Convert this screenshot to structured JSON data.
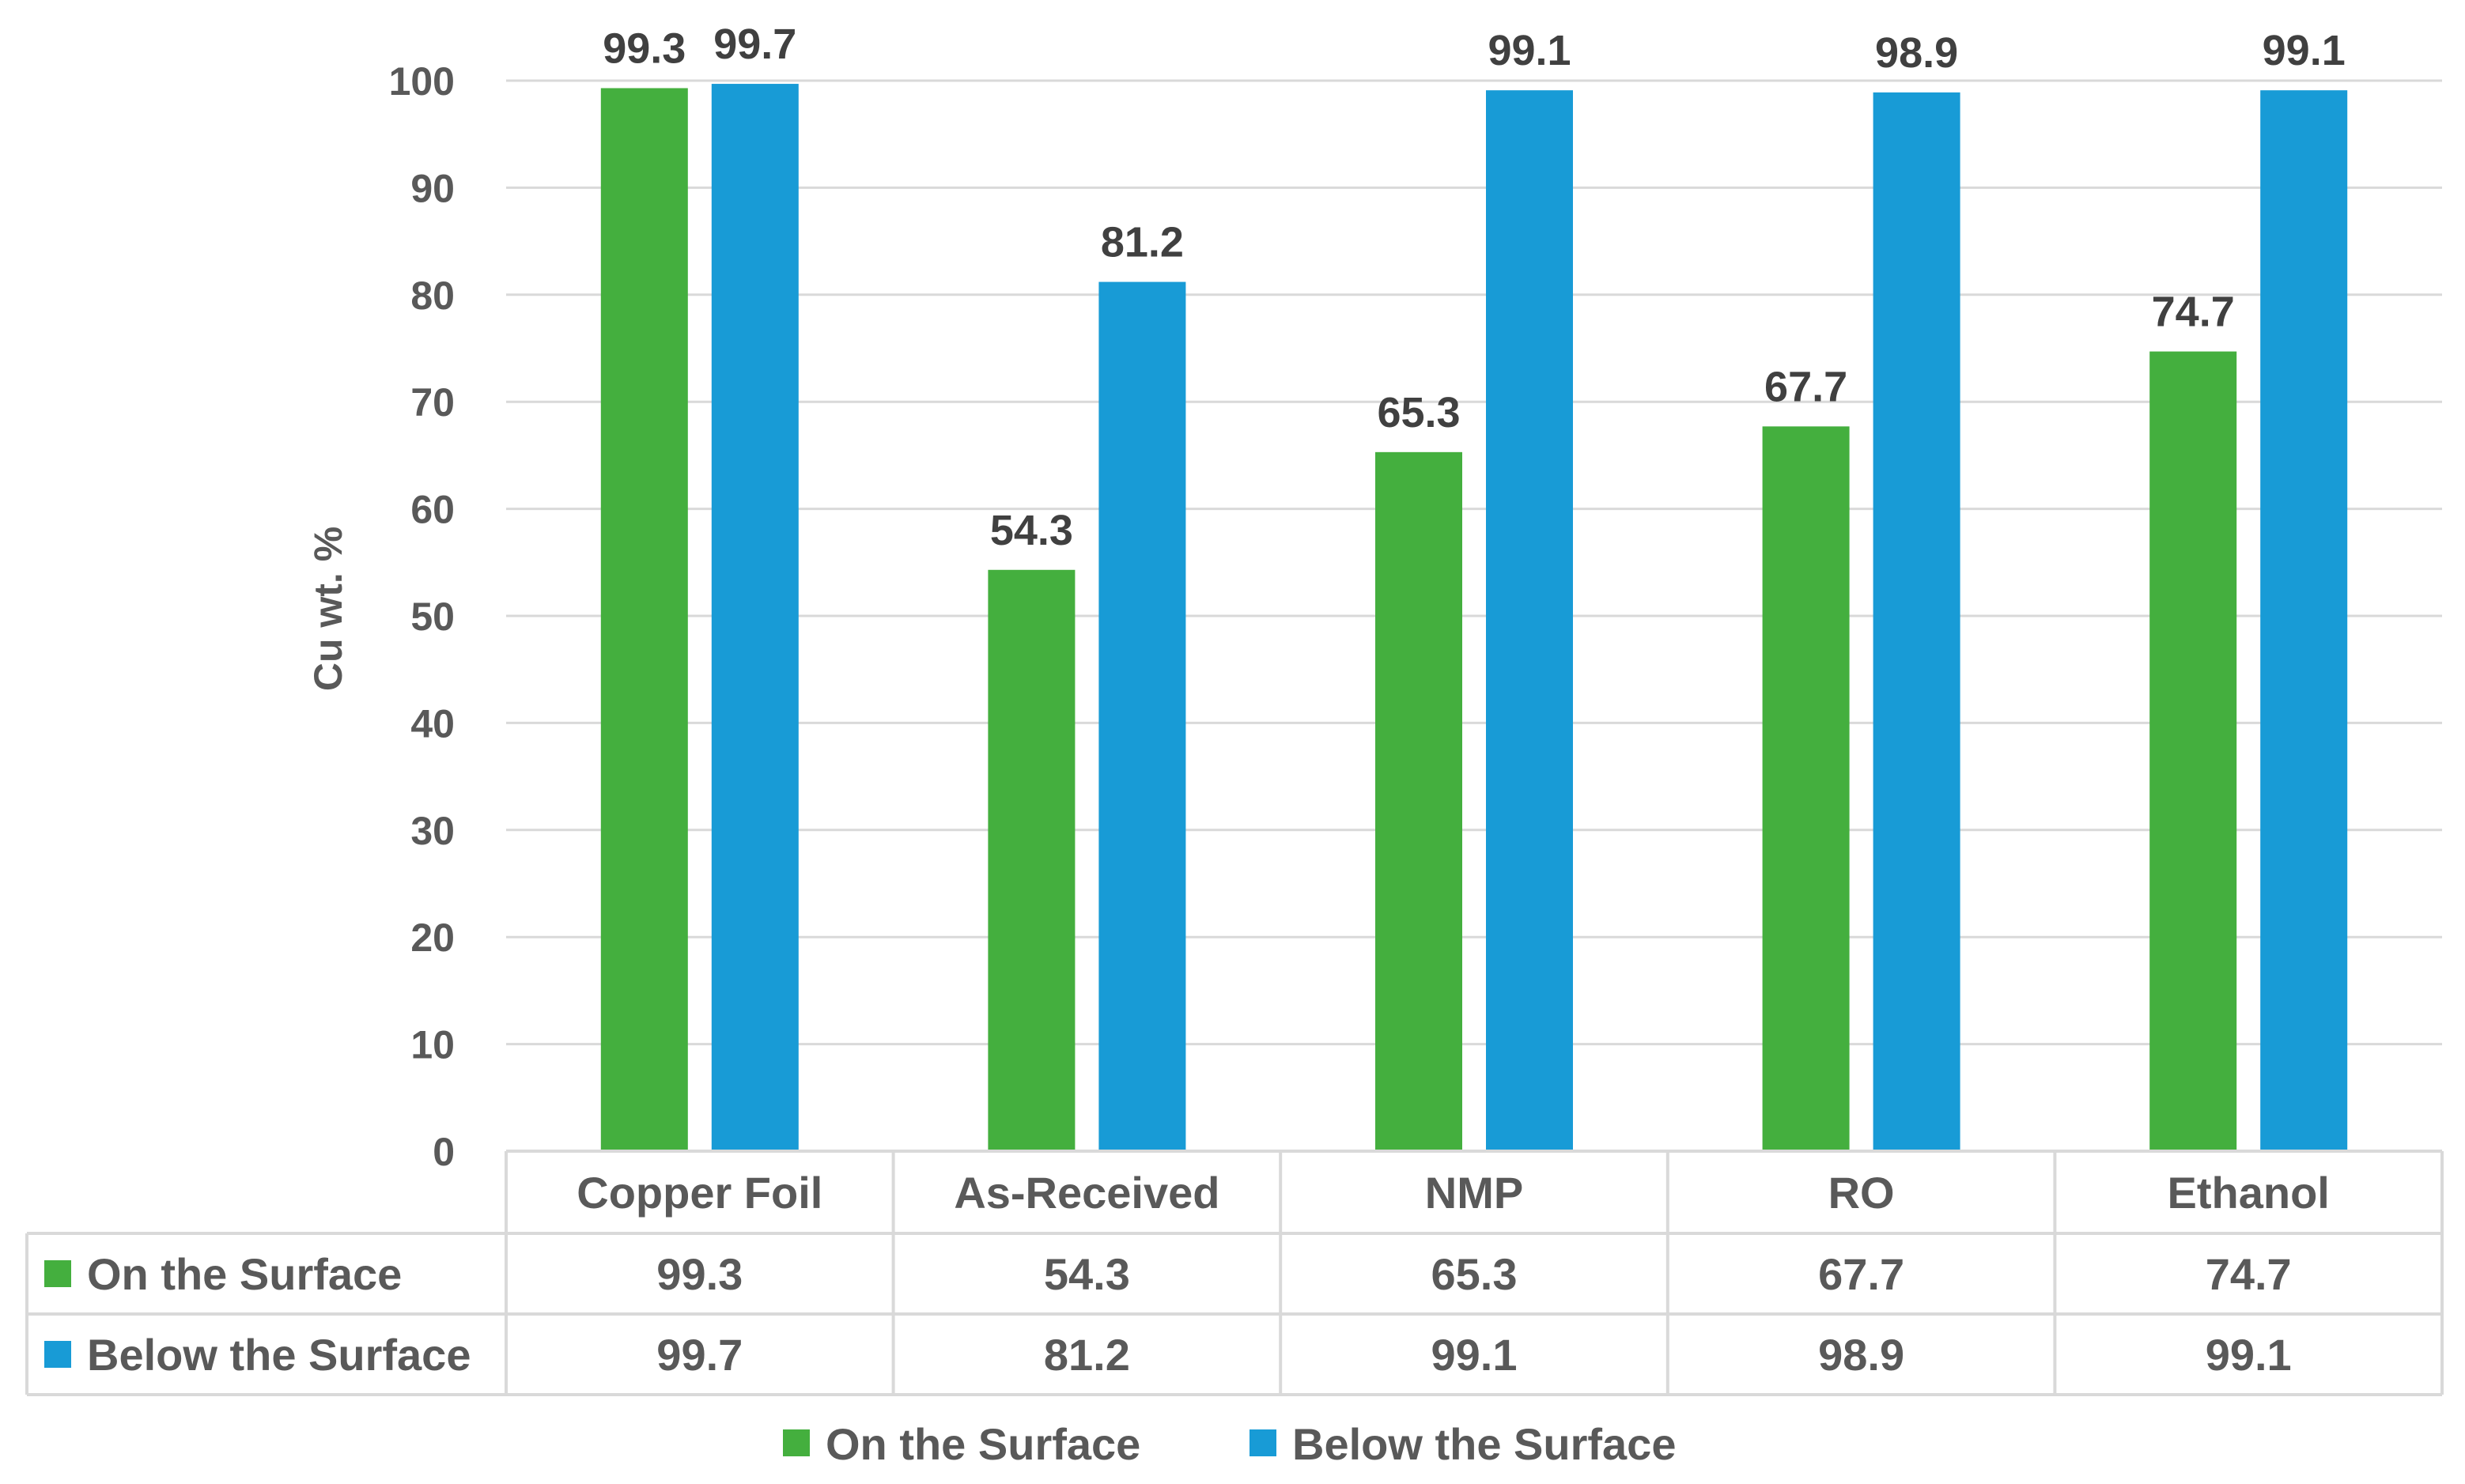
{
  "chart_data": {
    "type": "bar",
    "title": "",
    "xlabel": "",
    "ylabel": "Cu wt. %",
    "ylim": [
      0,
      100
    ],
    "yticks": [
      0,
      10,
      20,
      30,
      40,
      50,
      60,
      70,
      80,
      90,
      100
    ],
    "grid": true,
    "legend_position": "bottom",
    "categories": [
      "Copper Foil",
      "As-Received",
      "NMP",
      "RO",
      "Ethanol"
    ],
    "series": [
      {
        "name": "On the Surface",
        "color": "#44AF3E",
        "values": [
          99.3,
          54.3,
          65.3,
          67.7,
          74.7
        ],
        "labels": [
          "99.3",
          "54.3",
          "65.3",
          "67.7",
          "74.7"
        ]
      },
      {
        "name": "Below the Surface",
        "color": "#189BD6",
        "values": [
          99.7,
          81.2,
          99.1,
          98.9,
          99.1
        ],
        "labels": [
          "99.7",
          "81.2",
          "99.1",
          "98.9",
          "99.1"
        ]
      }
    ],
    "has_data_table": true
  },
  "colors": {
    "grid": "#D9D9D9",
    "table_border": "#D9D9D9",
    "text": "#595959",
    "label": "#404040"
  }
}
